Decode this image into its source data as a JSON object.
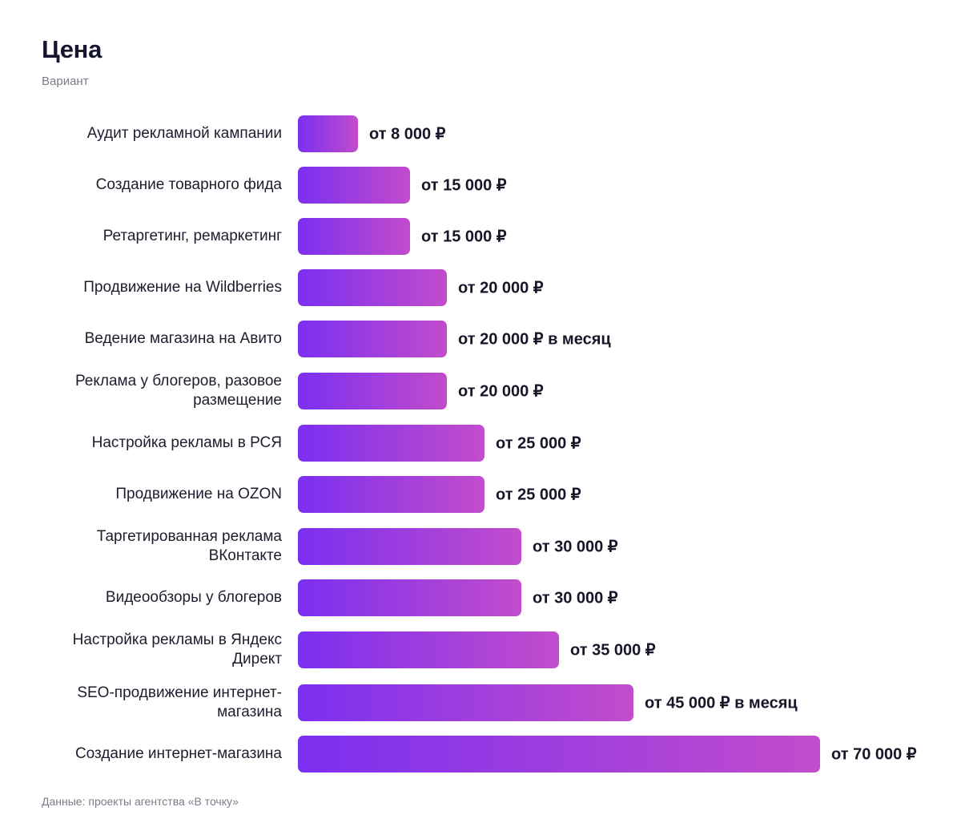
{
  "title": "Цена",
  "subtitle": "Вариант",
  "source": "Данные: проекты агентства «В точку»",
  "colors": {
    "bar_gradient_start": "#7b2ff0",
    "bar_gradient_end": "#c24ccc",
    "text": "#161628",
    "muted": "#7b7b8a"
  },
  "chart_data": {
    "type": "bar",
    "orientation": "horizontal",
    "title": "Цена",
    "subtitle": "Вариант",
    "xlim": [
      0,
      70000
    ],
    "grid": false,
    "categories": [
      "Аудит рекламной кампании",
      "Создание товарного фида",
      "Ретаргетинг, ремаркетинг",
      "Продвижение на Wildberries",
      "Ведение магазина на Авито",
      "Реклама у блогеров, разовое размещение",
      "Настройка рекламы в РСЯ",
      "Продвижение на OZON",
      "Таргетированная реклама ВКонтакте",
      "Видеообзоры у блогеров",
      "Настройка рекламы в Яндекс Директ",
      "SEO-продвижение интернет-магазина",
      "Создание интернет-магазина"
    ],
    "values": [
      8000,
      15000,
      15000,
      20000,
      20000,
      20000,
      25000,
      25000,
      30000,
      30000,
      35000,
      45000,
      70000
    ],
    "data_labels": [
      "от 8 000 ₽",
      "от 15 000 ₽",
      "от 15 000 ₽",
      "от 20 000 ₽",
      "от 20 000 ₽ в месяц",
      "от 20 000 ₽",
      "от 25 000 ₽",
      "от 25 000 ₽",
      "от 30 000 ₽",
      "от 30 000 ₽",
      "от 35 000 ₽",
      "от 45 000 ₽ в месяц",
      "от 70 000 ₽"
    ]
  }
}
